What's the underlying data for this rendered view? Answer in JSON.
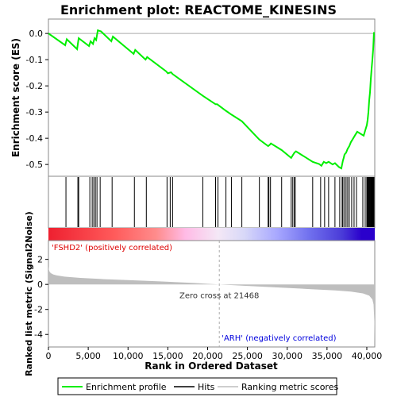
{
  "chart_data": {
    "type": "line",
    "title": "Enrichment plot: REACTOME_KINESINS",
    "x_axis": {
      "label": "Rank in Ordered Dataset",
      "range": [
        0,
        41000
      ],
      "ticks": [
        0,
        5000,
        10000,
        15000,
        20000,
        25000,
        30000,
        35000,
        40000
      ],
      "tick_labels": [
        "0",
        "5,000",
        "10,000",
        "15,000",
        "20,000",
        "25,000",
        "30,000",
        "35,000",
        "40,000"
      ]
    },
    "es_panel": {
      "ylabel": "Enrichment score (ES)",
      "ylim": [
        -0.545,
        0.055
      ],
      "ticks": [
        0.0,
        -0.1,
        -0.2,
        -0.3,
        -0.4,
        -0.5
      ],
      "tick_labels": [
        "0.0",
        "-0.1",
        "-0.2",
        "-0.3",
        "-0.4",
        "-0.5"
      ],
      "color": "#00ee00",
      "series": {
        "name": "Enrichment profile",
        "x": [
          0,
          2100,
          2300,
          3600,
          3800,
          5100,
          5300,
          5600,
          5800,
          6000,
          6200,
          6600,
          7900,
          8100,
          10700,
          10900,
          12200,
          12400,
          14800,
          15000,
          15400,
          15600,
          19400,
          21000,
          21200,
          22300,
          23000,
          24300,
          26500,
          27600,
          27800,
          27950,
          29300,
          30500,
          30700,
          30900,
          31100,
          33200,
          34000,
          34300,
          34600,
          34900,
          35200,
          35700,
          36000,
          36500,
          36800,
          36900,
          37000,
          37100,
          37200,
          37400,
          37600,
          37800,
          38000,
          38200,
          38500,
          38800,
          39600,
          39800,
          40000,
          40100,
          40200,
          40300,
          40400,
          40500,
          40600,
          40700,
          40800,
          40900
        ],
        "y": [
          0.0,
          -0.045,
          -0.022,
          -0.06,
          -0.018,
          -0.048,
          -0.03,
          -0.04,
          -0.018,
          -0.025,
          0.012,
          0.008,
          -0.03,
          -0.012,
          -0.078,
          -0.063,
          -0.1,
          -0.09,
          -0.145,
          -0.152,
          -0.148,
          -0.155,
          -0.238,
          -0.27,
          -0.27,
          -0.295,
          -0.31,
          -0.335,
          -0.405,
          -0.43,
          -0.425,
          -0.42,
          -0.445,
          -0.475,
          -0.465,
          -0.455,
          -0.45,
          -0.49,
          -0.498,
          -0.505,
          -0.49,
          -0.495,
          -0.49,
          -0.5,
          -0.495,
          -0.51,
          -0.515,
          -0.5,
          -0.485,
          -0.475,
          -0.462,
          -0.455,
          -0.44,
          -0.43,
          -0.415,
          -0.405,
          -0.39,
          -0.375,
          -0.39,
          -0.37,
          -0.35,
          -0.33,
          -0.3,
          -0.255,
          -0.225,
          -0.175,
          -0.135,
          -0.1,
          -0.06,
          0.005
        ]
      }
    },
    "hits": {
      "name": "Hits",
      "positions": [
        2200,
        3700,
        3800,
        5200,
        5500,
        5700,
        5900,
        6100,
        6500,
        8000,
        10800,
        12300,
        14900,
        15300,
        15600,
        19400,
        21000,
        21300,
        22300,
        23000,
        24300,
        26500,
        27600,
        27700,
        27900,
        29300,
        30500,
        30700,
        30900,
        31000,
        33200,
        34200,
        34700,
        35200,
        36000,
        36600,
        36900,
        37000,
        37200,
        37400,
        37600,
        37800,
        38100,
        38400,
        38700,
        39500,
        39800,
        40000,
        40100,
        40200,
        40300,
        40400,
        40500,
        40600,
        40700,
        40800,
        40900
      ]
    },
    "ranking_bar": {
      "stops": [
        {
          "offset": 0.0,
          "color": "#ee2030"
        },
        {
          "offset": 0.2,
          "color": "#ff5a5a"
        },
        {
          "offset": 0.33,
          "color": "#ff8c8c"
        },
        {
          "offset": 0.42,
          "color": "#ffbbe6"
        },
        {
          "offset": 0.52,
          "color": "#f4e8f6"
        },
        {
          "offset": 0.6,
          "color": "#d8d8f8"
        },
        {
          "offset": 0.7,
          "color": "#a8a8ff"
        },
        {
          "offset": 0.8,
          "color": "#7070ee"
        },
        {
          "offset": 0.9,
          "color": "#4a3bd8"
        },
        {
          "offset": 0.96,
          "color": "#2a00cc"
        },
        {
          "offset": 1.0,
          "color": "#2a00cc"
        }
      ]
    },
    "metric_panel": {
      "ylabel": "Ranked list metric (Signal2Noise)",
      "ylim": [
        -5.0,
        3.5
      ],
      "ticks": [
        2,
        0,
        -2,
        -4
      ],
      "tick_labels": [
        "2",
        "0",
        "-2",
        "-4"
      ],
      "fill_color": "#bebebe",
      "series": {
        "name": "Ranking metric scores",
        "x": [
          0,
          50,
          150,
          300,
          600,
          1000,
          2000,
          4000,
          7000,
          10000,
          14000,
          18000,
          21468,
          25000,
          29000,
          33000,
          36000,
          38000,
          39500,
          40300,
          40700,
          40850,
          40950,
          41000
        ],
        "y": [
          1.45,
          1.2,
          1.0,
          0.9,
          0.8,
          0.72,
          0.62,
          0.52,
          0.42,
          0.34,
          0.24,
          0.12,
          0.0,
          -0.12,
          -0.25,
          -0.38,
          -0.48,
          -0.58,
          -0.72,
          -0.9,
          -1.2,
          -1.6,
          -3.0,
          -4.8
        ]
      },
      "zero_cross_label": "Zero cross at 21468",
      "zero_cross": 21468,
      "pos_label": "'FSHD2' (positively correlated)",
      "neg_label": "'ARH' (negatively correlated)",
      "pos_color": "#dd0000",
      "neg_color": "#0000dd"
    },
    "legend": {
      "placement": "bottom",
      "entries": [
        {
          "name": "Enrichment profile",
          "color": "#00ee00"
        },
        {
          "name": "Hits",
          "color": "#000000"
        },
        {
          "name": "Ranking metric scores",
          "color": "#bebebe"
        }
      ]
    }
  }
}
